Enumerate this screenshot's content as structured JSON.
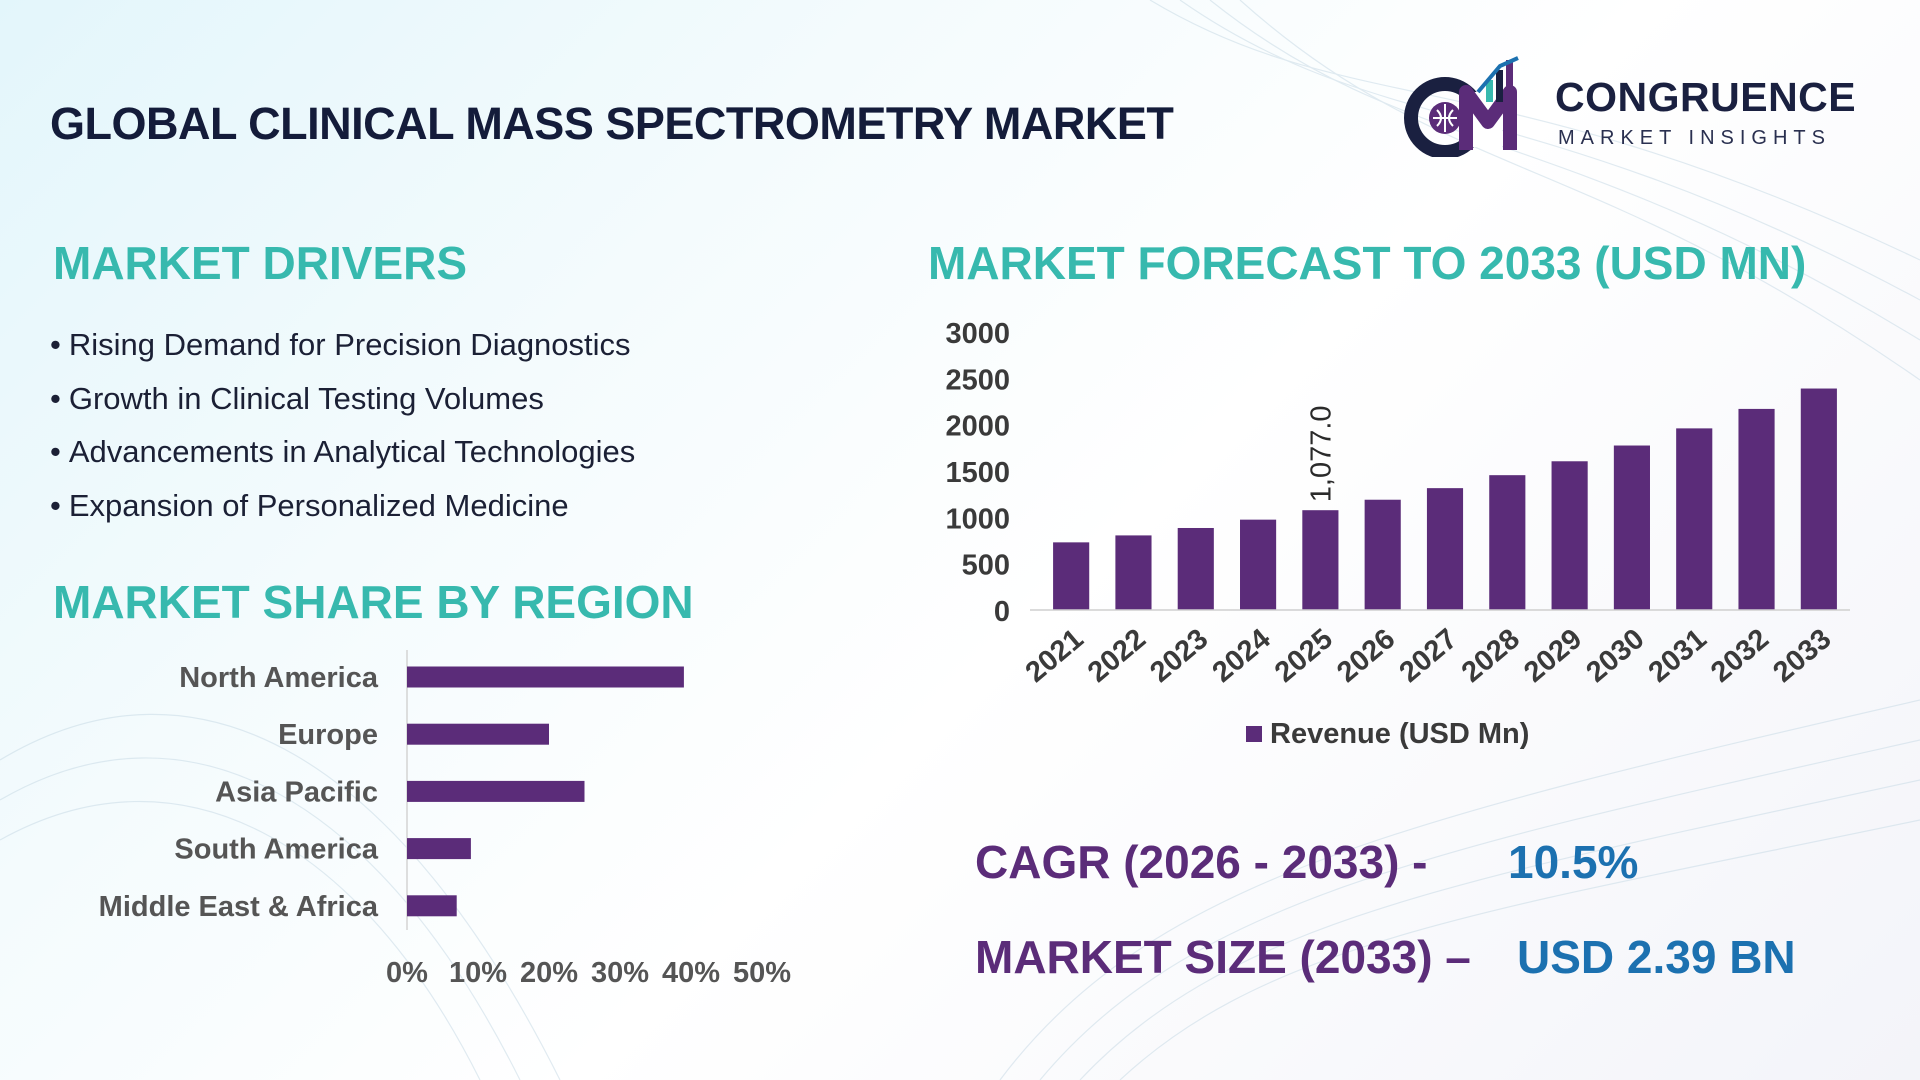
{
  "header": {
    "title": "GLOBAL CLINICAL MASS SPECTROMETRY MARKET",
    "brand_name": "CONGRUENCE",
    "brand_sub": "MARKET INSIGHTS"
  },
  "drivers": {
    "heading": "MARKET DRIVERS",
    "items": [
      "Rising Demand for Precision Diagnostics",
      "Growth in Clinical Testing Volumes",
      "Advancements in Analytical Technologies",
      "Expansion of Personalized Medicine"
    ]
  },
  "region": {
    "heading": "MARKET SHARE BY REGION"
  },
  "forecast": {
    "heading": "MARKET FORECAST TO 2033 (USD MN)"
  },
  "kpis": {
    "cagr_label": "CAGR (2026 - 2033) -",
    "cagr_value": "10.5%",
    "size_label": "MARKET SIZE (2033) –",
    "size_value": "USD 2.39 BN"
  },
  "colors": {
    "bar": "#5b2c79",
    "heading": "#37b9ae",
    "kpi_label": "#5b2c79",
    "kpi_value": "#1c71b0"
  },
  "chart_data": [
    {
      "type": "bar",
      "orientation": "vertical",
      "title": "MARKET FORECAST TO 2033 (USD MN)",
      "categories": [
        "2021",
        "2022",
        "2023",
        "2024",
        "2025",
        "2026",
        "2027",
        "2028",
        "2029",
        "2030",
        "2031",
        "2032",
        "2033"
      ],
      "series": [
        {
          "name": "Revenue (USD Mn)",
          "values": [
            730,
            805,
            885,
            975,
            1077,
            1190,
            1315,
            1455,
            1605,
            1775,
            1960,
            2170,
            2390
          ]
        }
      ],
      "data_labels": [
        {
          "category": "2025",
          "text": "1,077.0"
        }
      ],
      "ylim": [
        0,
        3000
      ],
      "yticks": [
        0,
        500,
        1000,
        1500,
        2000,
        2500,
        3000
      ],
      "legend": "bottom",
      "grid": false
    },
    {
      "type": "bar",
      "orientation": "horizontal",
      "title": "MARKET SHARE BY REGION",
      "categories": [
        "North America",
        "Europe",
        "Asia Pacific",
        "South America",
        "Middle East & Africa"
      ],
      "values": [
        39,
        20,
        25,
        9,
        7
      ],
      "xlim": [
        0,
        50
      ],
      "xticks": [
        "0%",
        "10%",
        "20%",
        "30%",
        "40%",
        "50%"
      ],
      "grid": false
    }
  ]
}
